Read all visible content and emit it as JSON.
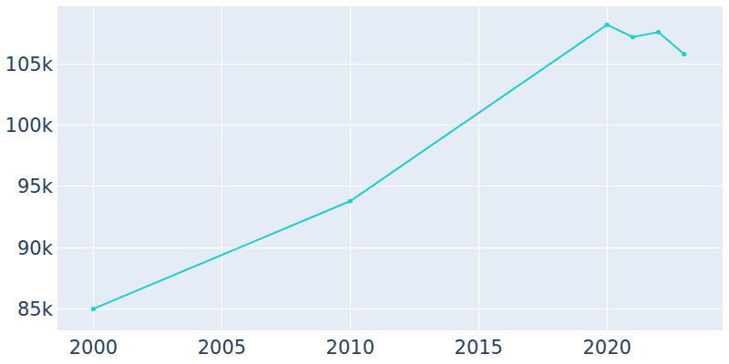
{
  "chart_data": {
    "type": "line",
    "x": [
      2000,
      2010,
      2020,
      2021,
      2022,
      2023
    ],
    "values": [
      85000,
      93800,
      108200,
      107200,
      107600,
      105800
    ],
    "color": "#1ccfcf",
    "marker": "circle",
    "line_style": "solid",
    "xlim": [
      1998.6,
      2024.5
    ],
    "xticks": [
      2000,
      2005,
      2010,
      2015,
      2020
    ],
    "ylim": [
      83250,
      109700
    ],
    "yticks": [
      {
        "value": 85000,
        "label": "85k"
      },
      {
        "value": 90000,
        "label": "90k"
      },
      {
        "value": 95000,
        "label": "95k"
      },
      {
        "value": 100000,
        "label": "100k"
      },
      {
        "value": 105000,
        "label": "105k"
      }
    ],
    "grid": true
  }
}
